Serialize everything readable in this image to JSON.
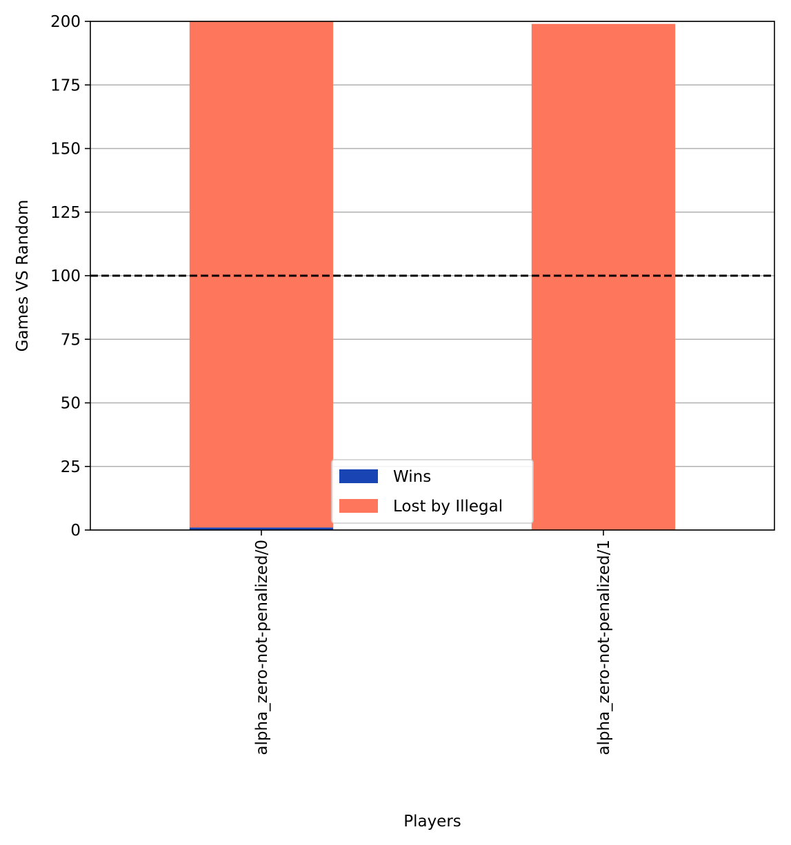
{
  "chart_data": {
    "type": "bar",
    "stacked": true,
    "categories": [
      "alpha_zero-not-penalized/0",
      "alpha_zero-not-penalized/1"
    ],
    "series": [
      {
        "name": "Wins",
        "color": "#1845b3",
        "values": [
          1,
          0
        ]
      },
      {
        "name": "Lost by Illegal",
        "color": "#fe775c",
        "values": [
          199,
          199
        ]
      }
    ],
    "title": "",
    "xlabel": "Players",
    "ylabel": "Games VS Random",
    "ylim": [
      0,
      200
    ],
    "yticks": [
      0,
      25,
      50,
      75,
      100,
      125,
      150,
      175,
      200
    ],
    "reference_line": {
      "y": 100,
      "style": "dashed",
      "color": "#000000"
    },
    "grid": "horizontal",
    "legend_position": "lower-center",
    "x_tick_rotation": "vertical"
  }
}
